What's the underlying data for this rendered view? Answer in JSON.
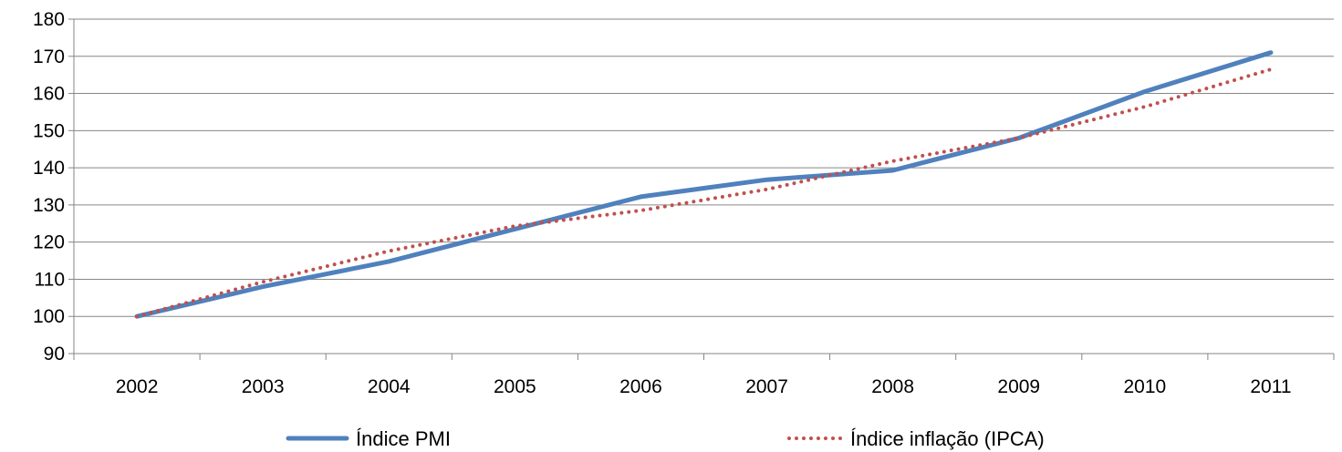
{
  "chart_data": {
    "type": "line",
    "title": "",
    "xlabel": "",
    "ylabel": "",
    "x": [
      "2002",
      "2003",
      "2004",
      "2005",
      "2006",
      "2007",
      "2008",
      "2009",
      "2010",
      "2011"
    ],
    "ylim": [
      90,
      180
    ],
    "yticks": [
      90,
      100,
      110,
      120,
      130,
      140,
      150,
      160,
      170,
      180
    ],
    "grid": true,
    "legend_position": "bottom",
    "series": [
      {
        "name": "Índice PMI",
        "values": [
          100,
          108,
          114.8,
          123.5,
          132.2,
          136.8,
          139.3,
          148,
          160.5,
          171
        ],
        "color": "#4f81bd",
        "style": "solid"
      },
      {
        "name": "Índice inflação (IPCA)",
        "values": [
          100,
          109.3,
          117.6,
          124.3,
          128.5,
          134.2,
          141.8,
          148,
          156.4,
          166.5
        ],
        "color": "#c0504d",
        "style": "dotted"
      }
    ]
  }
}
